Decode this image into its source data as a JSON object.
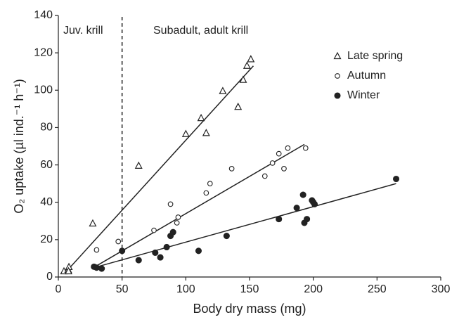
{
  "chart_data": {
    "type": "scatter",
    "xlabel": "Body dry mass (mg)",
    "ylabel": "O₂ uptake (µl ind.⁻¹ h⁻¹)",
    "xlim": [
      0,
      300
    ],
    "xticks": [
      0,
      50,
      100,
      150,
      200,
      250,
      300
    ],
    "ylim": [
      0,
      140
    ],
    "yticks": [
      0,
      20,
      40,
      60,
      80,
      100,
      120,
      140
    ],
    "divider_x": 50,
    "annotations": [
      "Juv. krill",
      "Subadult, adult krill"
    ],
    "legend": "upper right",
    "series": [
      {
        "name": "Late spring",
        "color": "#222222",
        "marker": "triangle",
        "x": [
          4.4,
          7.7,
          8.3,
          8,
          27,
          63,
          100,
          112,
          116,
          129,
          141,
          145,
          148,
          151
        ],
        "values": [
          3,
          3.8,
          5.3,
          3,
          28.6,
          59.5,
          76.5,
          85,
          77,
          99.5,
          91,
          105.5,
          113,
          116.5
        ],
        "fit": {
          "x": [
            5,
            153
          ],
          "values": [
            2,
            113
          ]
        }
      },
      {
        "name": "Autumn",
        "color": "#222222",
        "marker": "open-circle",
        "x": [
          30,
          47,
          75,
          88,
          93,
          94,
          116,
          119,
          136,
          162,
          168,
          173,
          177,
          180,
          194
        ],
        "values": [
          14.5,
          19,
          25,
          39,
          29,
          32,
          45,
          50,
          58,
          54,
          61,
          66,
          58,
          69,
          69
        ],
        "fit": {
          "x": [
            30,
            193
          ],
          "values": [
            6,
            71
          ]
        }
      },
      {
        "name": "Winter",
        "color": "#222222",
        "marker": "filled-circle",
        "x": [
          28,
          30,
          34,
          50,
          63,
          76,
          80,
          85,
          88,
          90,
          110,
          132,
          173,
          187,
          192,
          193,
          195,
          199,
          200,
          201,
          265
        ],
        "values": [
          5.5,
          5,
          4.5,
          14,
          9,
          13,
          10.5,
          16,
          22,
          24,
          14,
          22,
          31,
          37,
          44,
          29,
          31,
          41,
          40,
          39,
          52.5
        ],
        "fit": {
          "x": [
            28,
            265
          ],
          "values": [
            5,
            50
          ]
        }
      }
    ]
  }
}
